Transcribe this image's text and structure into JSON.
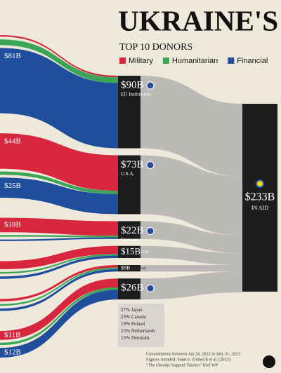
{
  "chart_data": {
    "type": "sankey",
    "title": "UKRAINE'S",
    "subtitle": "TOP 10 DONORS",
    "series": [
      {
        "name": "Military",
        "color": "#d7263d"
      },
      {
        "name": "Humanitarian",
        "color": "#3aa655"
      },
      {
        "name": "Financial",
        "color": "#1f4e9c"
      }
    ],
    "donors": [
      {
        "name": "EU Institutions",
        "value": 90,
        "value_label": "$90B",
        "segments": [
          2,
          7,
          81
        ],
        "segment_labels": [
          null,
          null,
          "$81B"
        ]
      },
      {
        "name": "U.S.A.",
        "value": 73,
        "value_label": "$73B",
        "segments": [
          44,
          4,
          25
        ],
        "segment_labels": [
          "$44B",
          null,
          "$25B"
        ]
      },
      {
        "name": "Germany",
        "value": 22,
        "value_label": "$22B",
        "segments": [
          18,
          2,
          2
        ],
        "segment_labels": [
          "$18B",
          null,
          null
        ]
      },
      {
        "name": "UK",
        "value": 15,
        "value_label": "$15B",
        "segments": [
          10,
          2,
          3
        ],
        "segment_labels": [
          null,
          null,
          null
        ]
      },
      {
        "name": "Norway",
        "value": 8,
        "value_label": "$8B",
        "segments": [
          3,
          2,
          3
        ],
        "segment_labels": [
          null,
          null,
          null
        ]
      },
      {
        "name": null,
        "value": 26,
        "value_label": "$26B",
        "segments": [
          11,
          3,
          12
        ],
        "segment_labels": [
          "$11B",
          null,
          "$12B"
        ]
      }
    ],
    "others": [
      {
        "value": 27,
        "value_label": "27%",
        "name": "Japan"
      },
      {
        "value": 23,
        "value_label": "23%",
        "name": "Canada"
      },
      {
        "value": 19,
        "value_label": "19%",
        "name": "Poland"
      },
      {
        "value": 15,
        "value_label": "15%",
        "name": "Netherlands"
      },
      {
        "value": 15,
        "value_label": "15%",
        "name": "Denmark"
      }
    ],
    "total": {
      "value": 233,
      "value_label": "$233B",
      "label": "IN AID"
    },
    "notes": [
      "Commitments between Jan 24, 2022 to July 31, 2023",
      "Figures rounded. Source: Trebesch et al. (2023)",
      "\"The Ukraine Support Tracker\" Kiel WP"
    ]
  }
}
